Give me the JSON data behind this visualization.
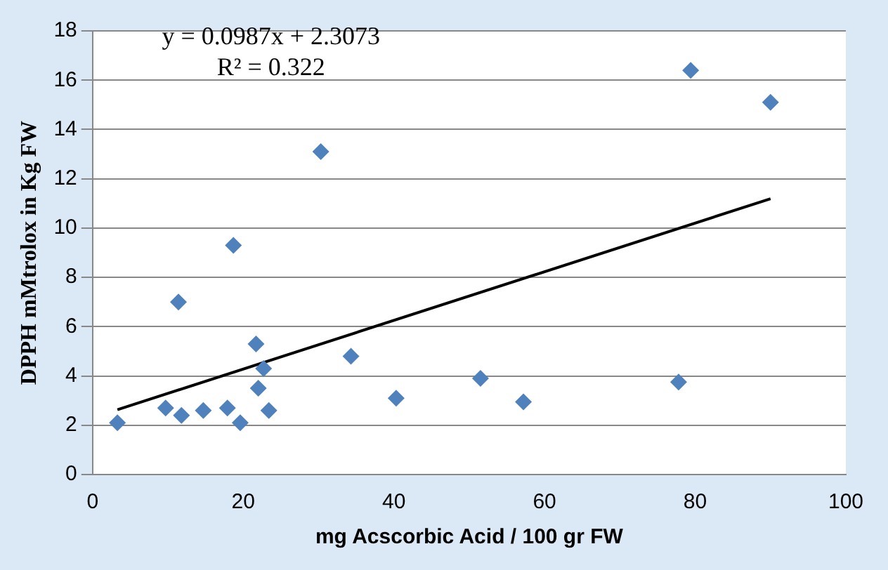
{
  "chart_data": {
    "type": "scatter",
    "xlabel": "mg Acscorbic Acid / 100 gr FW",
    "ylabel": "DPPH mMtrolox in Kg FW",
    "x": [
      3.3,
      9.7,
      11.4,
      11.8,
      14.7,
      17.9,
      18.7,
      19.6,
      21.7,
      22.0,
      22.7,
      23.4,
      30.3,
      34.3,
      40.3,
      51.5,
      57.2,
      77.8,
      79.4,
      90.0
    ],
    "series": [
      {
        "color": "#4f81bd",
        "marker": "diamond",
        "values": [
          2.1,
          2.7,
          7.0,
          2.4,
          2.6,
          2.7,
          9.3,
          2.1,
          5.3,
          3.5,
          4.3,
          2.6,
          13.1,
          4.8,
          3.1,
          3.9,
          2.95,
          3.75,
          16.4,
          15.1
        ]
      },
      {
        "type": "line",
        "color": "#000000",
        "marker": "none",
        "x": [
          3.3,
          90.0
        ],
        "values": [
          2.63,
          11.19
        ]
      }
    ],
    "annotations": [
      "y = 0.0987x + 2.3073",
      "R² = 0.322"
    ],
    "xlim": [
      0,
      100
    ],
    "xticks": [
      0,
      20,
      40,
      60,
      80,
      100
    ],
    "ylim": [
      0,
      18
    ],
    "yticks": [
      0,
      2,
      4,
      6,
      8,
      10,
      12,
      14,
      16,
      18
    ],
    "grid": "y",
    "legend": false
  }
}
